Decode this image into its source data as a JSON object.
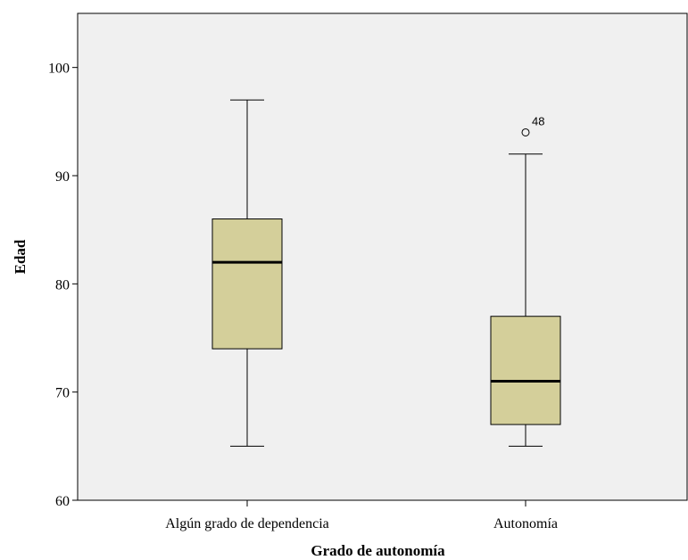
{
  "chart_data": {
    "type": "boxplot",
    "xlabel": "Grado de autonomía",
    "ylabel": "Edad",
    "ylim": [
      60,
      105
    ],
    "yticks": [
      60,
      70,
      80,
      90,
      100
    ],
    "grid": false,
    "colors": {
      "plot_background": "#f0f0f0",
      "box_fill": "#d4cf9a",
      "stroke": "#000000"
    },
    "categories": [
      "Algún grado de dependencia",
      "Autonomía"
    ],
    "boxes": [
      {
        "category": "Algún grado de dependencia",
        "min": 65,
        "q1": 74,
        "median": 82,
        "q3": 86,
        "max": 97,
        "outliers": []
      },
      {
        "category": "Autonomía",
        "min": 65,
        "q1": 67,
        "median": 71,
        "q3": 77,
        "max": 92,
        "outliers": [
          {
            "value": 94,
            "label": "48"
          }
        ]
      }
    ]
  }
}
